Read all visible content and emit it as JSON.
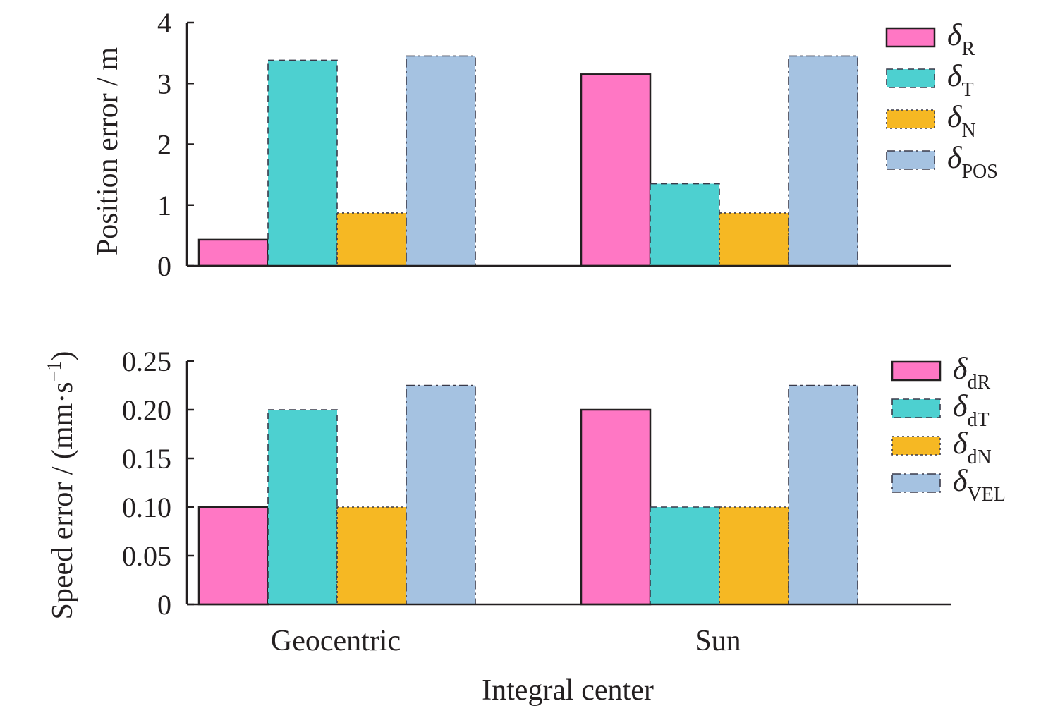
{
  "chart_data": [
    {
      "type": "bar",
      "categories": [
        "Geocentric",
        "Sun"
      ],
      "series": [
        {
          "name": "δR",
          "sym": "δ",
          "sub": "R",
          "values": [
            0.43,
            3.15
          ],
          "color": "#ff77c4"
        },
        {
          "name": "δT",
          "sym": "δ",
          "sub": "T",
          "values": [
            3.38,
            1.35
          ],
          "color": "#4dd0d0"
        },
        {
          "name": "δN",
          "sym": "δ",
          "sub": "N",
          "values": [
            0.87,
            0.87
          ],
          "color": "#f6b823"
        },
        {
          "name": "δPOS",
          "sym": "δ",
          "sub": "POS",
          "values": [
            3.45,
            3.45
          ],
          "color": "#a5c2e1"
        }
      ],
      "ylabel": "Position error / m",
      "ylim": [
        0,
        4
      ],
      "yticks": [
        "0",
        "1",
        "2",
        "3",
        "4"
      ],
      "legend": "top-right"
    },
    {
      "type": "bar",
      "categories": [
        "Geocentric",
        "Sun"
      ],
      "series": [
        {
          "name": "δdR",
          "sym": "δ",
          "sub": "dR",
          "values": [
            0.1,
            0.2
          ],
          "color": "#ff77c4"
        },
        {
          "name": "δdT",
          "sym": "δ",
          "sub": "dT",
          "values": [
            0.2,
            0.1
          ],
          "color": "#4dd0d0"
        },
        {
          "name": "δdN",
          "sym": "δ",
          "sub": "dN",
          "values": [
            0.1,
            0.1
          ],
          "color": "#f6b823"
        },
        {
          "name": "δVEL",
          "sym": "δ",
          "sub": "VEL",
          "values": [
            0.225,
            0.225
          ],
          "color": "#a5c2e1"
        }
      ],
      "ylabel": "Speed error / (mm·s",
      "ylabel_sup": "−1",
      "ylabel_tail": ")",
      "ylim": [
        0,
        0.25
      ],
      "yticks": [
        "0",
        "0.05",
        "0.10",
        "0.15",
        "0.20",
        "0.25"
      ],
      "xlabel": "Integral center",
      "legend": "top-right"
    }
  ]
}
